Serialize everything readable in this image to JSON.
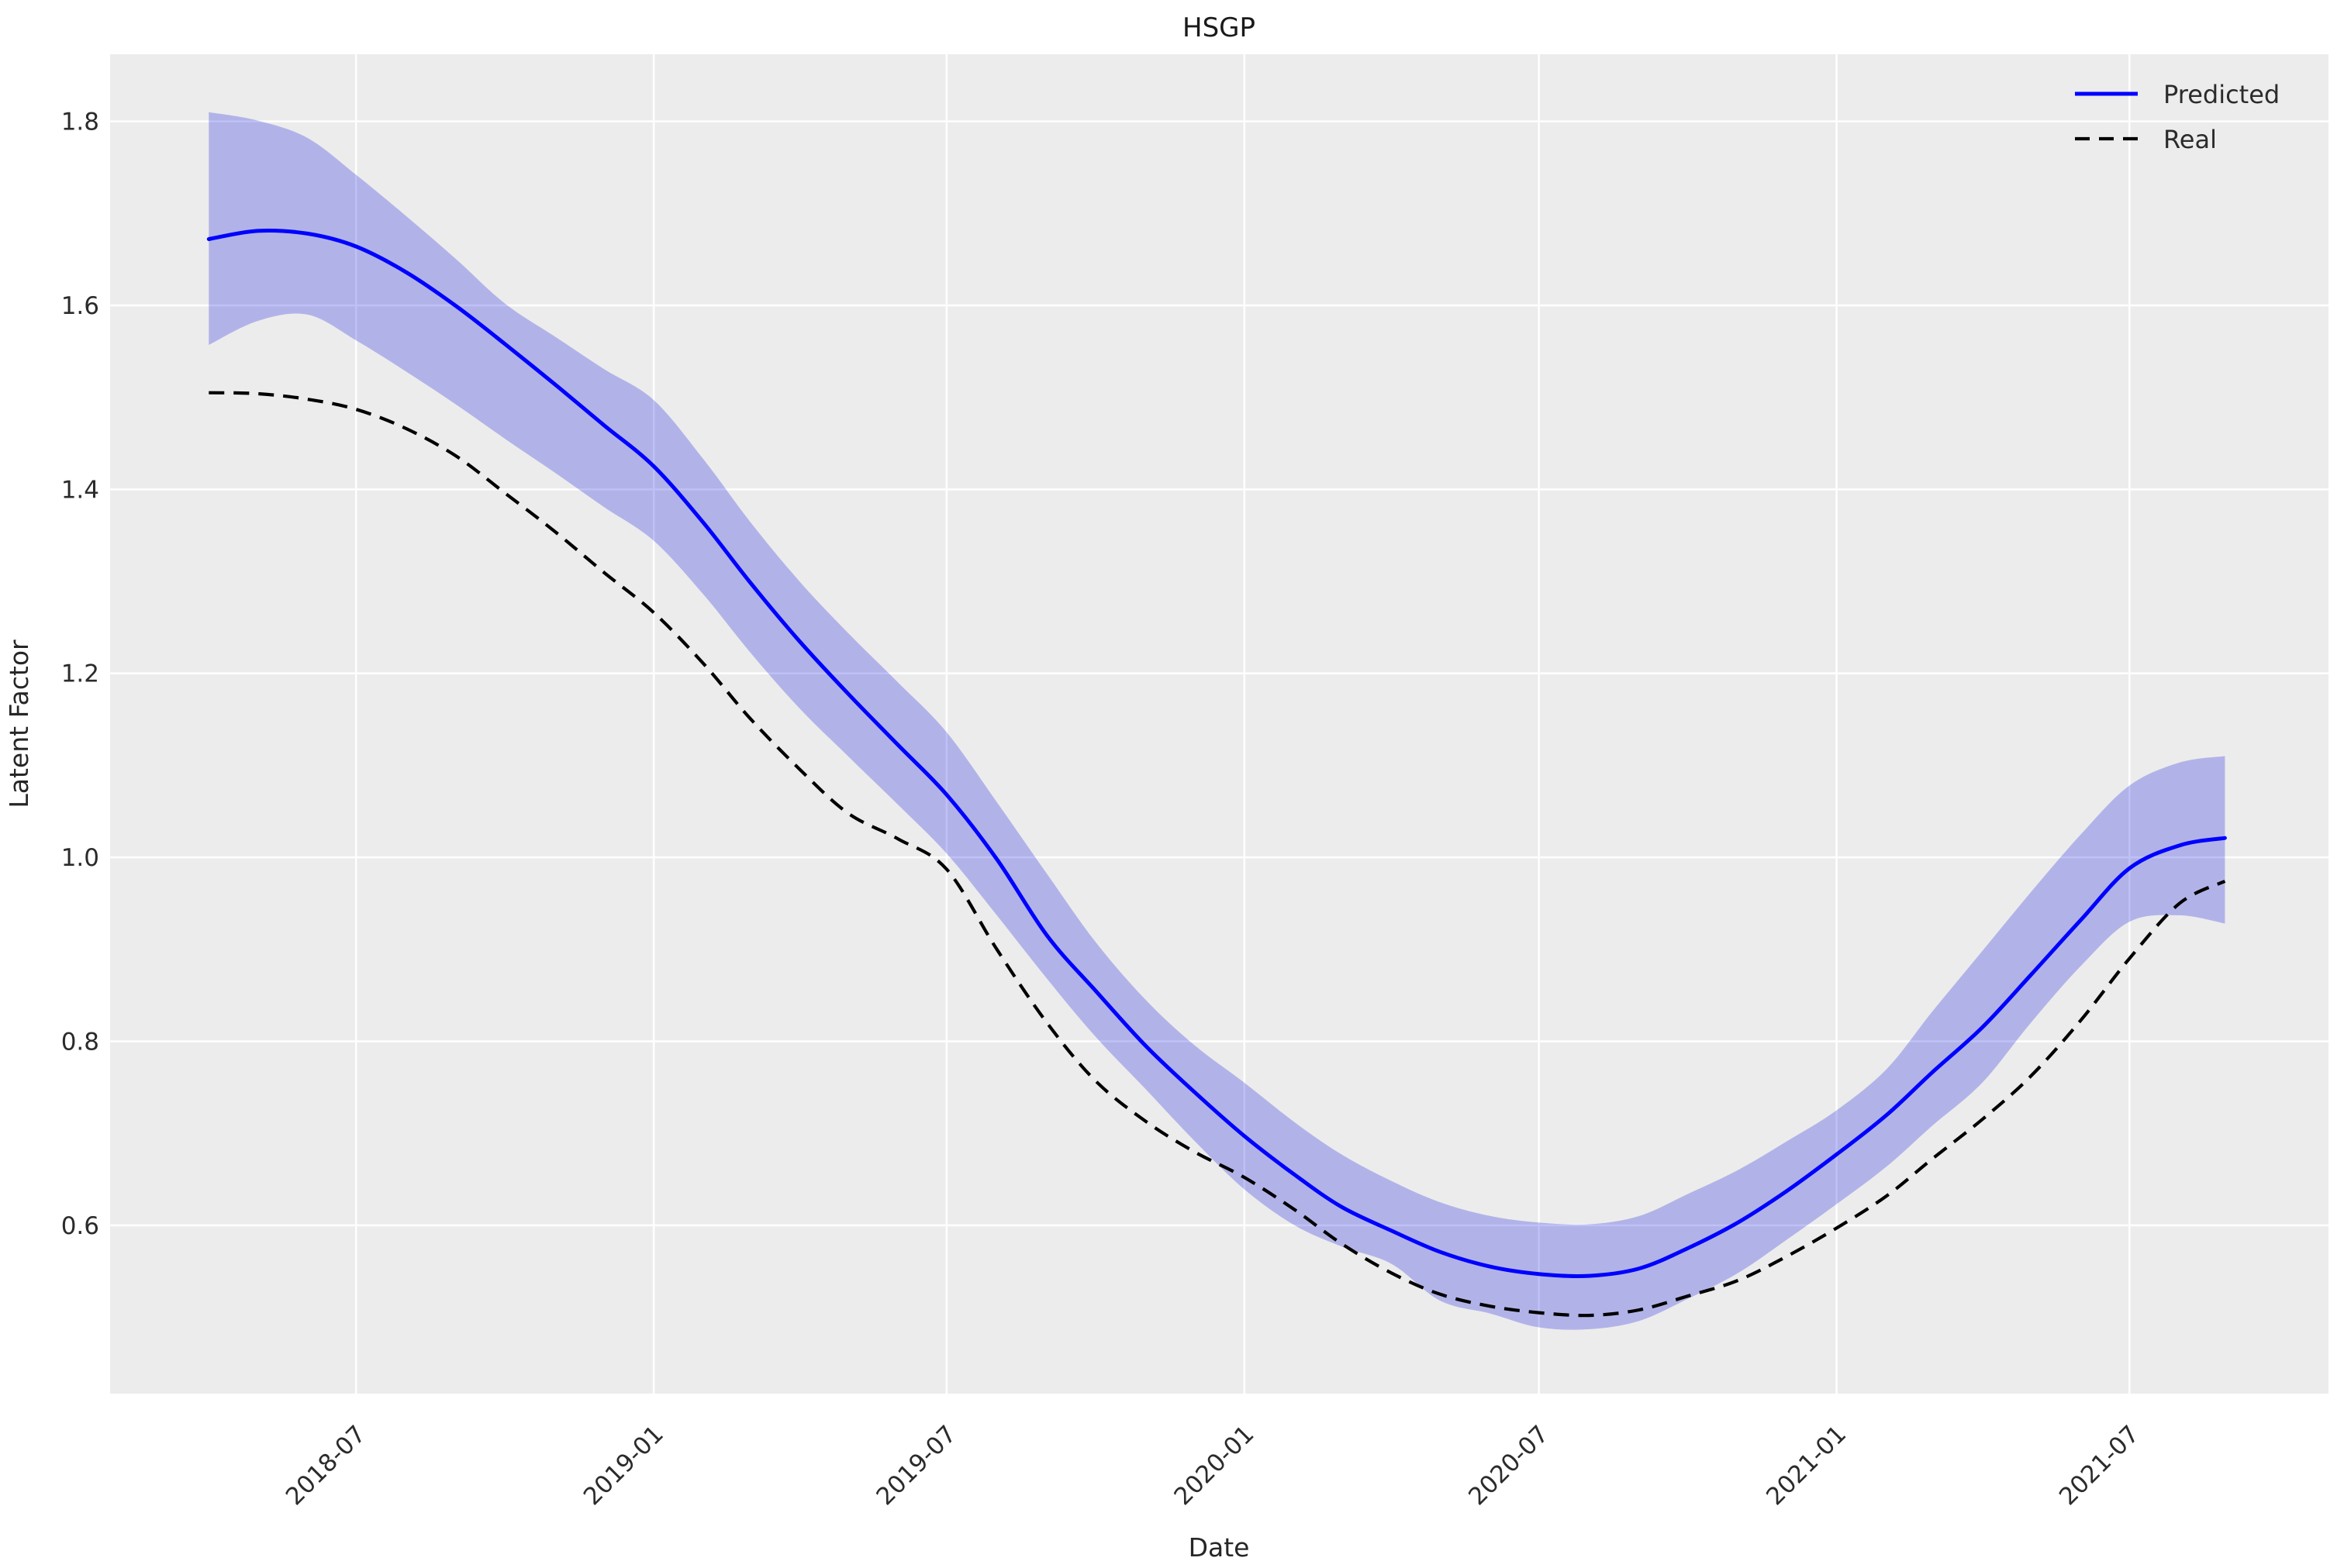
{
  "title": "HSGP",
  "legend": {
    "items": [
      {
        "label": "Predicted",
        "color": "#0000ff",
        "style": "solid"
      },
      {
        "label": "Real",
        "color": "#000000",
        "style": "dashed"
      }
    ],
    "position": "upper right"
  },
  "colors": {
    "panel_bg": "#ececec",
    "grid": "#ffffff",
    "predicted_line": "#0000ff",
    "real_line": "#000000",
    "band_fill": "rgba(0,8,220,0.25)",
    "text": "#262626"
  },
  "chart_data": {
    "type": "line",
    "title": "HSGP",
    "xlabel": "Date",
    "ylabel": "Latent Factor",
    "grid": true,
    "legend_position": "upper right",
    "x_range": [
      "2018-01-30",
      "2021-11-01"
    ],
    "y_range": [
      0.417,
      1.873
    ],
    "y_ticks": [
      {
        "value": 0.6,
        "label": "0.6"
      },
      {
        "value": 0.8,
        "label": "0.8"
      },
      {
        "value": 1.0,
        "label": "1.0"
      },
      {
        "value": 1.2,
        "label": "1.2"
      },
      {
        "value": 1.4,
        "label": "1.4"
      },
      {
        "value": 1.6,
        "label": "1.6"
      },
      {
        "value": 1.8,
        "label": "1.8"
      }
    ],
    "x_ticks": [
      {
        "date": "2018-07-01",
        "label": "2018-07"
      },
      {
        "date": "2019-01-01",
        "label": "2019-01"
      },
      {
        "date": "2019-07-01",
        "label": "2019-07"
      },
      {
        "date": "2020-01-01",
        "label": "2020-01"
      },
      {
        "date": "2020-07-01",
        "label": "2020-07"
      },
      {
        "date": "2021-01-01",
        "label": "2021-01"
      },
      {
        "date": "2021-07-01",
        "label": "2021-07"
      }
    ],
    "x": [
      "2018-04-01",
      "2018-05-01",
      "2018-06-01",
      "2018-07-01",
      "2018-08-01",
      "2018-09-01",
      "2018-10-01",
      "2018-11-01",
      "2018-12-01",
      "2019-01-01",
      "2019-02-01",
      "2019-03-01",
      "2019-04-01",
      "2019-05-01",
      "2019-06-01",
      "2019-07-01",
      "2019-08-01",
      "2019-09-01",
      "2019-10-01",
      "2019-11-01",
      "2019-12-01",
      "2020-01-01",
      "2020-02-01",
      "2020-03-01",
      "2020-04-01",
      "2020-05-01",
      "2020-06-01",
      "2020-07-01",
      "2020-08-01",
      "2020-09-01",
      "2020-10-01",
      "2020-11-01",
      "2020-12-01",
      "2021-01-01",
      "2021-02-01",
      "2021-03-01",
      "2021-04-01",
      "2021-05-01",
      "2021-06-01",
      "2021-07-01",
      "2021-08-01",
      "2021-08-29"
    ],
    "series": [
      {
        "name": "Predicted",
        "style": "solid",
        "color": "#0000ff",
        "values": [
          1.672,
          1.681,
          1.678,
          1.664,
          1.636,
          1.599,
          1.558,
          1.514,
          1.47,
          1.425,
          1.363,
          1.3,
          1.235,
          1.178,
          1.122,
          1.068,
          0.998,
          0.915,
          0.855,
          0.795,
          0.745,
          0.697,
          0.655,
          0.62,
          0.594,
          0.571,
          0.555,
          0.547,
          0.545,
          0.553,
          0.575,
          0.603,
          0.637,
          0.677,
          0.72,
          0.766,
          0.815,
          0.872,
          0.932,
          0.988,
          1.013,
          1.021
        ]
      },
      {
        "name": "Real",
        "style": "dashed",
        "color": "#000000",
        "values": [
          1.505,
          1.504,
          1.498,
          1.487,
          1.466,
          1.436,
          1.396,
          1.354,
          1.31,
          1.266,
          1.21,
          1.152,
          1.096,
          1.048,
          1.02,
          0.987,
          0.9,
          0.82,
          0.757,
          0.713,
          0.68,
          0.652,
          0.617,
          0.58,
          0.548,
          0.525,
          0.512,
          0.505,
          0.502,
          0.508,
          0.523,
          0.54,
          0.566,
          0.597,
          0.632,
          0.672,
          0.715,
          0.762,
          0.823,
          0.89,
          0.95,
          0.974
        ]
      }
    ],
    "band": {
      "name": "Predicted credible interval",
      "color": "rgba(0,8,220,0.25)",
      "upper": [
        1.81,
        1.801,
        1.782,
        1.742,
        1.697,
        1.65,
        1.602,
        1.566,
        1.531,
        1.497,
        1.432,
        1.366,
        1.3,
        1.244,
        1.19,
        1.136,
        1.06,
        0.982,
        0.908,
        0.845,
        0.796,
        0.755,
        0.712,
        0.677,
        0.648,
        0.625,
        0.61,
        0.603,
        0.601,
        0.61,
        0.634,
        0.66,
        0.691,
        0.725,
        0.77,
        0.832,
        0.898,
        0.962,
        1.025,
        1.078,
        1.103,
        1.11
      ],
      "lower": [
        1.557,
        1.583,
        1.59,
        1.562,
        1.528,
        1.492,
        1.455,
        1.418,
        1.381,
        1.344,
        1.285,
        1.224,
        1.162,
        1.11,
        1.057,
        1.004,
        0.937,
        0.868,
        0.805,
        0.748,
        0.692,
        0.639,
        0.6,
        0.577,
        0.558,
        0.518,
        0.504,
        0.489,
        0.487,
        0.496,
        0.52,
        0.548,
        0.584,
        0.623,
        0.664,
        0.708,
        0.755,
        0.82,
        0.882,
        0.93,
        0.937,
        0.928
      ]
    }
  }
}
